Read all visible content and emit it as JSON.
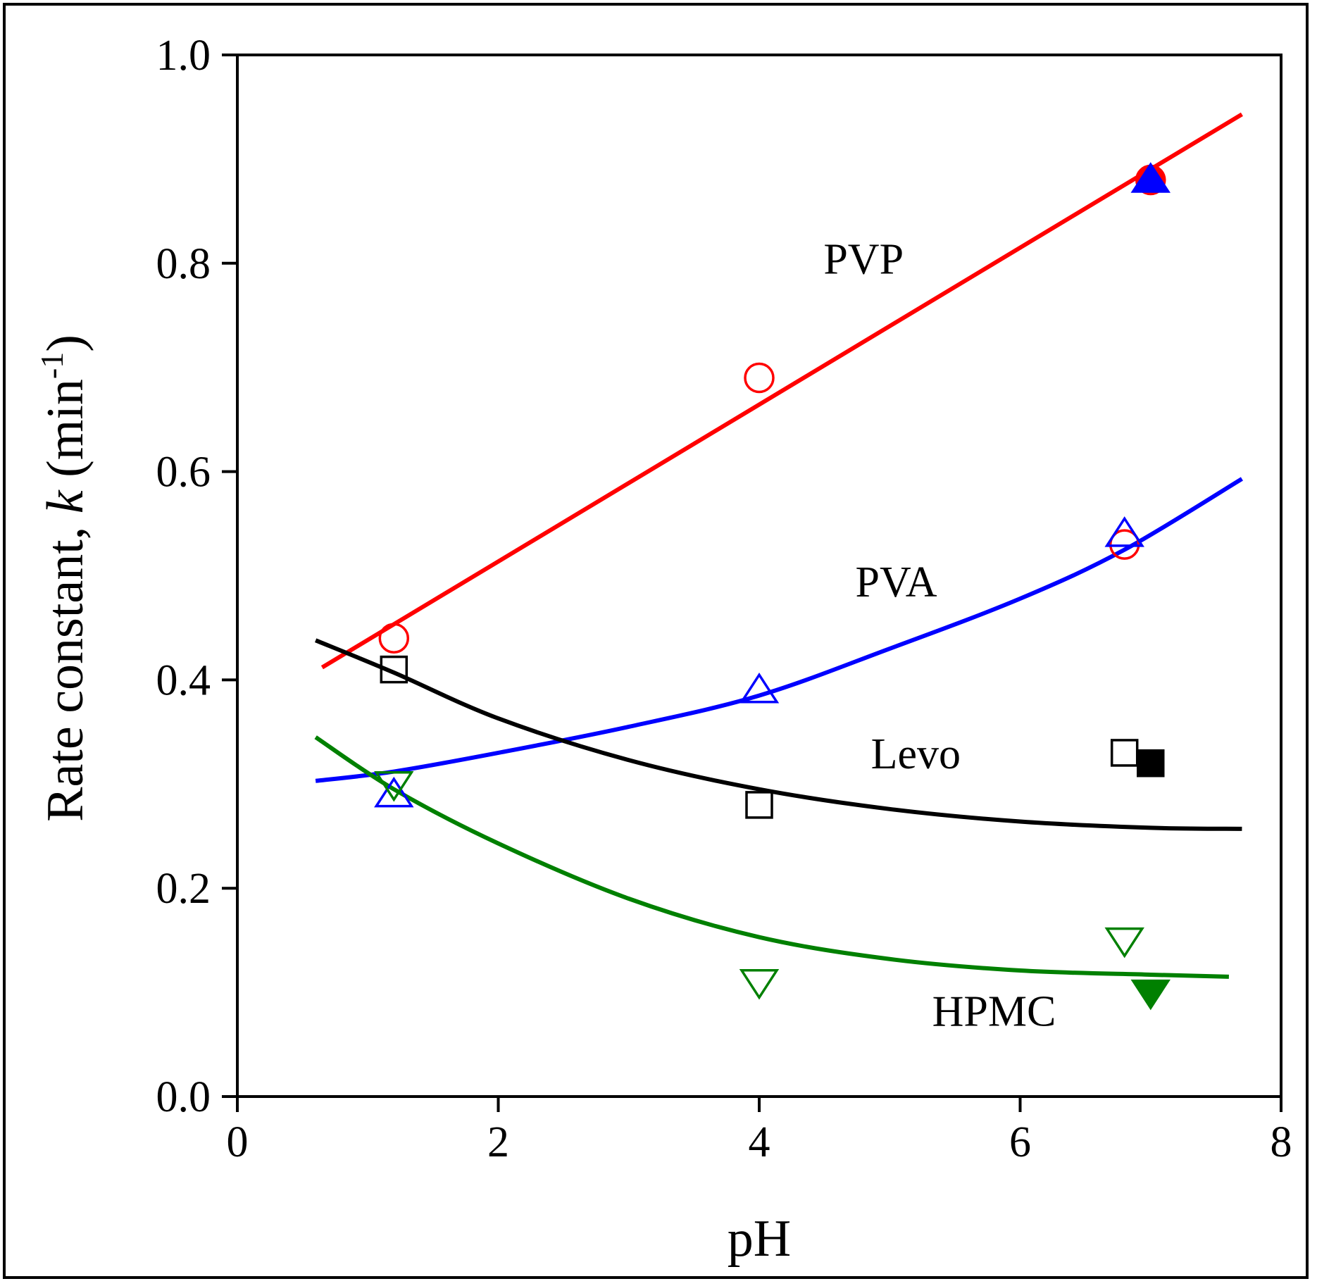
{
  "chart_data": {
    "type": "scatter",
    "title": "",
    "xlabel": "pH",
    "ylabel": {
      "prefix": "Rate constant, ",
      "italic": "k",
      "unit_open": " (min",
      "unit_sup": "-1",
      "unit_close": ")"
    },
    "xlim": [
      0,
      8
    ],
    "ylim": [
      0.0,
      1.0
    ],
    "xticks": [
      0,
      2,
      4,
      6,
      8
    ],
    "xtick_labels": [
      "0",
      "2",
      "4",
      "6",
      "8"
    ],
    "yticks": [
      0.0,
      0.2,
      0.4,
      0.6,
      0.8,
      1.0
    ],
    "ytick_labels": [
      "0.0",
      "0.2",
      "0.4",
      "0.6",
      "0.8",
      "1.0"
    ],
    "grid": false,
    "series": [
      {
        "name": "PVP",
        "label": "PVP",
        "color": "#ff0000",
        "marker": "circle-open",
        "points": [
          {
            "x": 1.2,
            "y": 0.44
          },
          {
            "x": 4.0,
            "y": 0.69
          },
          {
            "x": 6.8,
            "y": 0.53
          }
        ],
        "filled_points": [
          {
            "x": 7.0,
            "y": 0.88
          }
        ],
        "fit": {
          "kind": "linear",
          "x": [
            0.65,
            7.7
          ],
          "y": [
            0.412,
            0.943
          ]
        }
      },
      {
        "name": "PVA",
        "label": "PVA",
        "color": "#0000ff",
        "marker": "triangle-up-open",
        "points": [
          {
            "x": 1.2,
            "y": 0.29
          },
          {
            "x": 4.0,
            "y": 0.39
          },
          {
            "x": 6.8,
            "y": 0.54
          }
        ],
        "filled_points": [
          {
            "x": 7.0,
            "y": 0.88
          }
        ],
        "fit": {
          "kind": "curve",
          "x": [
            0.6,
            1.2,
            2.0,
            3.0,
            4.0,
            5.0,
            6.0,
            6.8,
            7.7
          ],
          "y": [
            0.303,
            0.312,
            0.33,
            0.355,
            0.385,
            0.43,
            0.478,
            0.525,
            0.593
          ]
        }
      },
      {
        "name": "Levo",
        "label": "Levo",
        "color": "#000000",
        "marker": "square-open",
        "points": [
          {
            "x": 1.2,
            "y": 0.41
          },
          {
            "x": 4.0,
            "y": 0.28
          },
          {
            "x": 6.8,
            "y": 0.33
          }
        ],
        "filled_points": [
          {
            "x": 7.0,
            "y": 0.32
          }
        ],
        "fit": {
          "kind": "curve",
          "x": [
            0.6,
            1.2,
            2.0,
            3.0,
            4.0,
            5.0,
            6.0,
            7.0,
            7.7
          ],
          "y": [
            0.438,
            0.407,
            0.363,
            0.323,
            0.295,
            0.276,
            0.264,
            0.258,
            0.257
          ]
        }
      },
      {
        "name": "HPMC",
        "label": "HPMC",
        "color": "#008000",
        "marker": "triangle-down-open",
        "points": [
          {
            "x": 1.2,
            "y": 0.3
          },
          {
            "x": 4.0,
            "y": 0.11
          },
          {
            "x": 6.8,
            "y": 0.15
          }
        ],
        "filled_points": [
          {
            "x": 7.0,
            "y": 0.1
          }
        ],
        "fit": {
          "kind": "curve",
          "x": [
            0.6,
            1.2,
            2.0,
            3.0,
            4.0,
            5.0,
            6.0,
            7.0,
            7.6
          ],
          "y": [
            0.345,
            0.295,
            0.243,
            0.19,
            0.153,
            0.132,
            0.121,
            0.117,
            0.115
          ]
        }
      }
    ],
    "annotations": [
      {
        "text": "PVP",
        "x": 4.8,
        "y": 0.79
      },
      {
        "text": "PVA",
        "x": 5.05,
        "y": 0.48
      },
      {
        "text": "Levo",
        "x": 5.2,
        "y": 0.315
      },
      {
        "text": "HPMC",
        "x": 5.8,
        "y": 0.068
      }
    ]
  }
}
